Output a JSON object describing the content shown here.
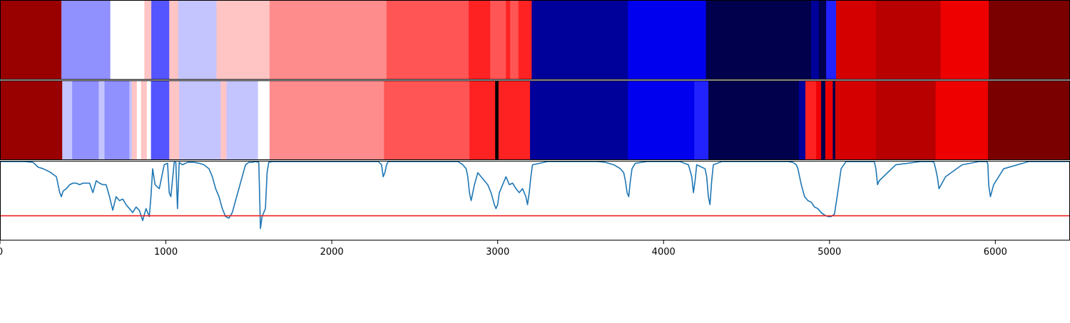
{
  "chart_data": {
    "type": "heatmap",
    "xlim": [
      0,
      6450
    ],
    "xticks": [
      0,
      1000,
      2000,
      3000,
      4000,
      5000,
      6000
    ],
    "xtick_labels": [
      "0",
      "1000",
      "2000",
      "3000",
      "4000",
      "5000",
      "6000"
    ],
    "colormap": "seismic",
    "rows": [
      {
        "segments": [
          {
            "start": 0,
            "end": 370,
            "color": "#990000"
          },
          {
            "start": 370,
            "end": 665,
            "color": "#9090ff"
          },
          {
            "start": 665,
            "end": 870,
            "color": "#ffffff"
          },
          {
            "start": 870,
            "end": 912,
            "color": "#ffc4c4"
          },
          {
            "start": 912,
            "end": 1020,
            "color": "#5555ff"
          },
          {
            "start": 1020,
            "end": 1075,
            "color": "#ffc4c4"
          },
          {
            "start": 1075,
            "end": 1305,
            "color": "#c4c4ff"
          },
          {
            "start": 1305,
            "end": 1625,
            "color": "#ffc4c4"
          },
          {
            "start": 1625,
            "end": 2330,
            "color": "#ff8c8c"
          },
          {
            "start": 2330,
            "end": 2825,
            "color": "#ff5555"
          },
          {
            "start": 2825,
            "end": 2955,
            "color": "#ff2222"
          },
          {
            "start": 2955,
            "end": 3050,
            "color": "#ff5555"
          },
          {
            "start": 3050,
            "end": 3075,
            "color": "#ff2222"
          },
          {
            "start": 3075,
            "end": 3125,
            "color": "#ff5555"
          },
          {
            "start": 3125,
            "end": 3205,
            "color": "#ff2222"
          },
          {
            "start": 3205,
            "end": 3785,
            "color": "#00009a"
          },
          {
            "start": 3785,
            "end": 4255,
            "color": "#0000ee"
          },
          {
            "start": 4255,
            "end": 4890,
            "color": "#00004c"
          },
          {
            "start": 4890,
            "end": 4935,
            "color": "#00009a"
          },
          {
            "start": 4935,
            "end": 4980,
            "color": "#00004c"
          },
          {
            "start": 4980,
            "end": 5040,
            "color": "#2222ff"
          },
          {
            "start": 5040,
            "end": 5280,
            "color": "#d40000"
          },
          {
            "start": 5280,
            "end": 5670,
            "color": "#b80000"
          },
          {
            "start": 5670,
            "end": 5960,
            "color": "#ee0000"
          },
          {
            "start": 5960,
            "end": 6450,
            "color": "#7a0000"
          }
        ]
      },
      {
        "segments": [
          {
            "start": 0,
            "end": 375,
            "color": "#990000"
          },
          {
            "start": 375,
            "end": 435,
            "color": "#c4c4ff"
          },
          {
            "start": 435,
            "end": 595,
            "color": "#9090ff"
          },
          {
            "start": 595,
            "end": 630,
            "color": "#c4c4ff"
          },
          {
            "start": 630,
            "end": 780,
            "color": "#9090ff"
          },
          {
            "start": 780,
            "end": 795,
            "color": "#c4c4ff"
          },
          {
            "start": 795,
            "end": 825,
            "color": "#ffc4c4"
          },
          {
            "start": 825,
            "end": 850,
            "color": "#ffffff"
          },
          {
            "start": 850,
            "end": 885,
            "color": "#ffc4c4"
          },
          {
            "start": 885,
            "end": 910,
            "color": "#ffffff"
          },
          {
            "start": 910,
            "end": 1020,
            "color": "#5555ff"
          },
          {
            "start": 1020,
            "end": 1080,
            "color": "#ffc4c4"
          },
          {
            "start": 1080,
            "end": 1330,
            "color": "#c4c4ff"
          },
          {
            "start": 1330,
            "end": 1365,
            "color": "#ffc4c4"
          },
          {
            "start": 1365,
            "end": 1555,
            "color": "#c4c4ff"
          },
          {
            "start": 1555,
            "end": 1625,
            "color": "#ffffff"
          },
          {
            "start": 1625,
            "end": 2315,
            "color": "#ff8c8c"
          },
          {
            "start": 2315,
            "end": 2830,
            "color": "#ff5555"
          },
          {
            "start": 2830,
            "end": 2985,
            "color": "#ff2222"
          },
          {
            "start": 2985,
            "end": 3005,
            "color": "#000000"
          },
          {
            "start": 3005,
            "end": 3195,
            "color": "#ff2222"
          },
          {
            "start": 3195,
            "end": 3785,
            "color": "#00009a"
          },
          {
            "start": 3785,
            "end": 4185,
            "color": "#0000ee"
          },
          {
            "start": 4185,
            "end": 4270,
            "color": "#2222ff"
          },
          {
            "start": 4270,
            "end": 4815,
            "color": "#00004c"
          },
          {
            "start": 4815,
            "end": 4855,
            "color": "#00009a"
          },
          {
            "start": 4855,
            "end": 4920,
            "color": "#ff2222"
          },
          {
            "start": 4920,
            "end": 4950,
            "color": "#ee0000"
          },
          {
            "start": 4950,
            "end": 4975,
            "color": "#00004c"
          },
          {
            "start": 4975,
            "end": 5020,
            "color": "#ee0000"
          },
          {
            "start": 5020,
            "end": 5035,
            "color": "#00004c"
          },
          {
            "start": 5035,
            "end": 5280,
            "color": "#d40000"
          },
          {
            "start": 5280,
            "end": 5640,
            "color": "#b80000"
          },
          {
            "start": 5640,
            "end": 5955,
            "color": "#ee0000"
          },
          {
            "start": 5955,
            "end": 6450,
            "color": "#7a0000"
          }
        ]
      }
    ],
    "line": {
      "color": "#1f77b4",
      "ylim": [
        0,
        1
      ],
      "x": [
        0,
        150,
        200,
        230,
        260,
        300,
        340,
        360,
        370,
        380,
        400,
        420,
        440,
        460,
        480,
        500,
        520,
        540,
        560,
        580,
        600,
        620,
        640,
        660,
        680,
        700,
        720,
        740,
        760,
        780,
        800,
        820,
        840,
        860,
        880,
        900,
        910,
        920,
        935,
        960,
        990,
        1010,
        1020,
        1030,
        1050,
        1060,
        1070,
        1080,
        1100,
        1130,
        1170,
        1200,
        1230,
        1260,
        1280,
        1300,
        1320,
        1340,
        1360,
        1380,
        1400,
        1420,
        1440,
        1460,
        1480,
        1500,
        1520,
        1540,
        1560,
        1570,
        1580,
        1600,
        1610,
        1620,
        1640,
        1700,
        1800,
        1900,
        2000,
        2100,
        2200,
        2280,
        2300,
        2310,
        2320,
        2330,
        2340,
        2360,
        2500,
        2600,
        2700,
        2760,
        2790,
        2810,
        2820,
        2830,
        2840,
        2850,
        2860,
        2880,
        2900,
        2920,
        2940,
        2960,
        2980,
        2990,
        3000,
        3010,
        3030,
        3050,
        3070,
        3090,
        3110,
        3130,
        3150,
        3170,
        3180,
        3190,
        3200,
        3210,
        3300,
        3500,
        3600,
        3650,
        3700,
        3740,
        3760,
        3770,
        3780,
        3790,
        3800,
        3810,
        3830,
        3900,
        4000,
        4100,
        4150,
        4170,
        4180,
        4190,
        4200,
        4250,
        4260,
        4270,
        4280,
        4290,
        4300,
        4350,
        4400,
        4500,
        4600,
        4700,
        4750,
        4780,
        4800,
        4810,
        4820,
        4830,
        4850,
        4870,
        4890,
        4910,
        4930,
        4950,
        4970,
        4990,
        5010,
        5030,
        5050,
        5070,
        5100,
        5200,
        5250,
        5270,
        5280,
        5290,
        5300,
        5400,
        5550,
        5600,
        5620,
        5630,
        5640,
        5650,
        5660,
        5700,
        5800,
        5900,
        5940,
        5950,
        5955,
        5960,
        5970,
        5990,
        6050,
        6200,
        6300,
        6450
      ],
      "y": [
        0.99,
        0.99,
        0.98,
        0.92,
        0.9,
        0.86,
        0.8,
        0.6,
        0.55,
        0.62,
        0.65,
        0.7,
        0.72,
        0.72,
        0.7,
        0.72,
        0.72,
        0.72,
        0.6,
        0.75,
        0.72,
        0.7,
        0.7,
        0.55,
        0.38,
        0.55,
        0.5,
        0.52,
        0.45,
        0.4,
        0.35,
        0.42,
        0.38,
        0.25,
        0.4,
        0.3,
        0.55,
        0.9,
        0.7,
        0.65,
        0.95,
        0.97,
        0.6,
        0.55,
        0.98,
        0.98,
        0.4,
        0.98,
        0.95,
        0.98,
        0.98,
        0.97,
        0.95,
        0.9,
        0.8,
        0.65,
        0.55,
        0.4,
        0.3,
        0.28,
        0.35,
        0.5,
        0.65,
        0.8,
        0.95,
        0.98,
        0.98,
        0.99,
        0.98,
        0.15,
        0.3,
        0.4,
        0.85,
        0.98,
        0.99,
        0.99,
        0.99,
        0.99,
        0.99,
        0.99,
        0.99,
        0.99,
        0.95,
        0.8,
        0.85,
        0.95,
        0.99,
        0.99,
        0.99,
        0.99,
        0.99,
        0.99,
        0.95,
        0.9,
        0.8,
        0.6,
        0.5,
        0.6,
        0.7,
        0.85,
        0.8,
        0.75,
        0.7,
        0.6,
        0.45,
        0.4,
        0.45,
        0.6,
        0.7,
        0.8,
        0.7,
        0.72,
        0.65,
        0.6,
        0.65,
        0.55,
        0.45,
        0.6,
        0.8,
        0.95,
        0.99,
        0.99,
        0.99,
        0.98,
        0.95,
        0.9,
        0.85,
        0.75,
        0.6,
        0.55,
        0.75,
        0.9,
        0.97,
        0.99,
        0.99,
        0.99,
        0.95,
        0.8,
        0.6,
        0.75,
        0.95,
        0.9,
        0.8,
        0.55,
        0.45,
        0.75,
        0.95,
        0.99,
        0.99,
        0.99,
        0.99,
        0.99,
        0.99,
        0.98,
        0.95,
        0.9,
        0.8,
        0.7,
        0.55,
        0.5,
        0.48,
        0.42,
        0.4,
        0.35,
        0.32,
        0.3,
        0.3,
        0.33,
        0.6,
        0.9,
        0.99,
        0.99,
        0.99,
        0.99,
        0.9,
        0.7,
        0.75,
        0.95,
        0.99,
        0.99,
        0.99,
        0.98,
        0.9,
        0.8,
        0.65,
        0.8,
        0.95,
        0.99,
        0.99,
        0.99,
        0.95,
        0.7,
        0.55,
        0.7,
        0.9,
        0.99,
        0.99,
        0.99,
        0.99,
        0.99
      ],
      "threshold": {
        "value": 0.31,
        "color": "#ee2222"
      }
    }
  }
}
